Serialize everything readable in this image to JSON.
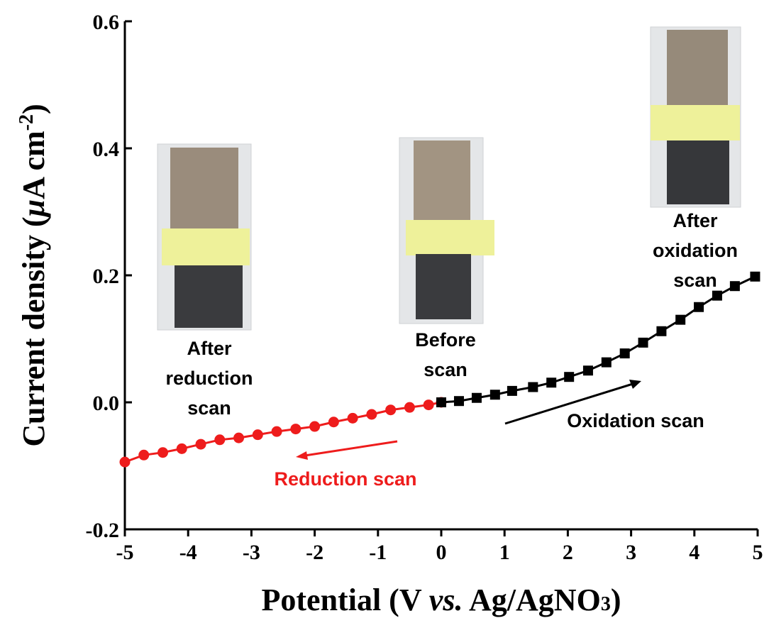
{
  "chart_data": {
    "type": "line",
    "xlabel": [
      "Potential (V ",
      "vs.",
      " Ag/AgNO",
      "3",
      ")"
    ],
    "ylabel": [
      "Current density (",
      "μ",
      "A cm",
      "-2",
      ")"
    ],
    "xlim": [
      -5,
      5
    ],
    "ylim": [
      -0.2,
      0.6
    ],
    "xticks": [
      -5,
      -4,
      -3,
      -2,
      -1,
      {
        "value": 0,
        "label": "0"
      },
      1,
      2,
      3,
      4,
      5
    ],
    "yticks": [
      -0.2,
      {
        "value": 0,
        "label": "0.0"
      },
      0.2,
      0.4,
      0.6
    ],
    "series": [
      {
        "name": "Reduction scan",
        "color": "#ee1c1c",
        "marker": "circle",
        "x": [
          -5,
          -4.7,
          -4.4,
          -4.1,
          -3.8,
          -3.5,
          -3.2,
          -2.9,
          -2.6,
          -2.3,
          -2.0,
          -1.7,
          -1.4,
          -1.1,
          -0.8,
          -0.5,
          -0.2,
          0
        ],
        "values": [
          -0.094,
          -0.083,
          -0.079,
          -0.073,
          -0.066,
          -0.059,
          -0.056,
          -0.051,
          -0.046,
          -0.042,
          -0.038,
          -0.031,
          -0.025,
          -0.019,
          -0.012,
          -0.008,
          -0.004,
          0
        ]
      },
      {
        "name": "Oxidation scan",
        "color": "#000000",
        "marker": "square",
        "x": [
          0,
          0.28,
          0.56,
          0.85,
          1.12,
          1.45,
          1.74,
          2.02,
          2.32,
          2.61,
          2.9,
          3.19,
          3.48,
          3.78,
          4.07,
          4.36,
          4.64,
          4.96
        ],
        "values": [
          0,
          0.002,
          0.007,
          0.012,
          0.018,
          0.024,
          0.031,
          0.04,
          0.05,
          0.063,
          0.077,
          0.094,
          0.112,
          0.13,
          0.15,
          0.168,
          0.183,
          0.198
        ]
      }
    ],
    "annotations": [
      {
        "lines": [
          "After",
          "reduction",
          "scan"
        ],
        "color": "#000000"
      },
      {
        "lines": [
          "Before",
          "scan"
        ],
        "color": "#000000"
      },
      {
        "lines": [
          "After",
          "oxidation",
          "scan"
        ],
        "color": "#000000"
      }
    ]
  }
}
